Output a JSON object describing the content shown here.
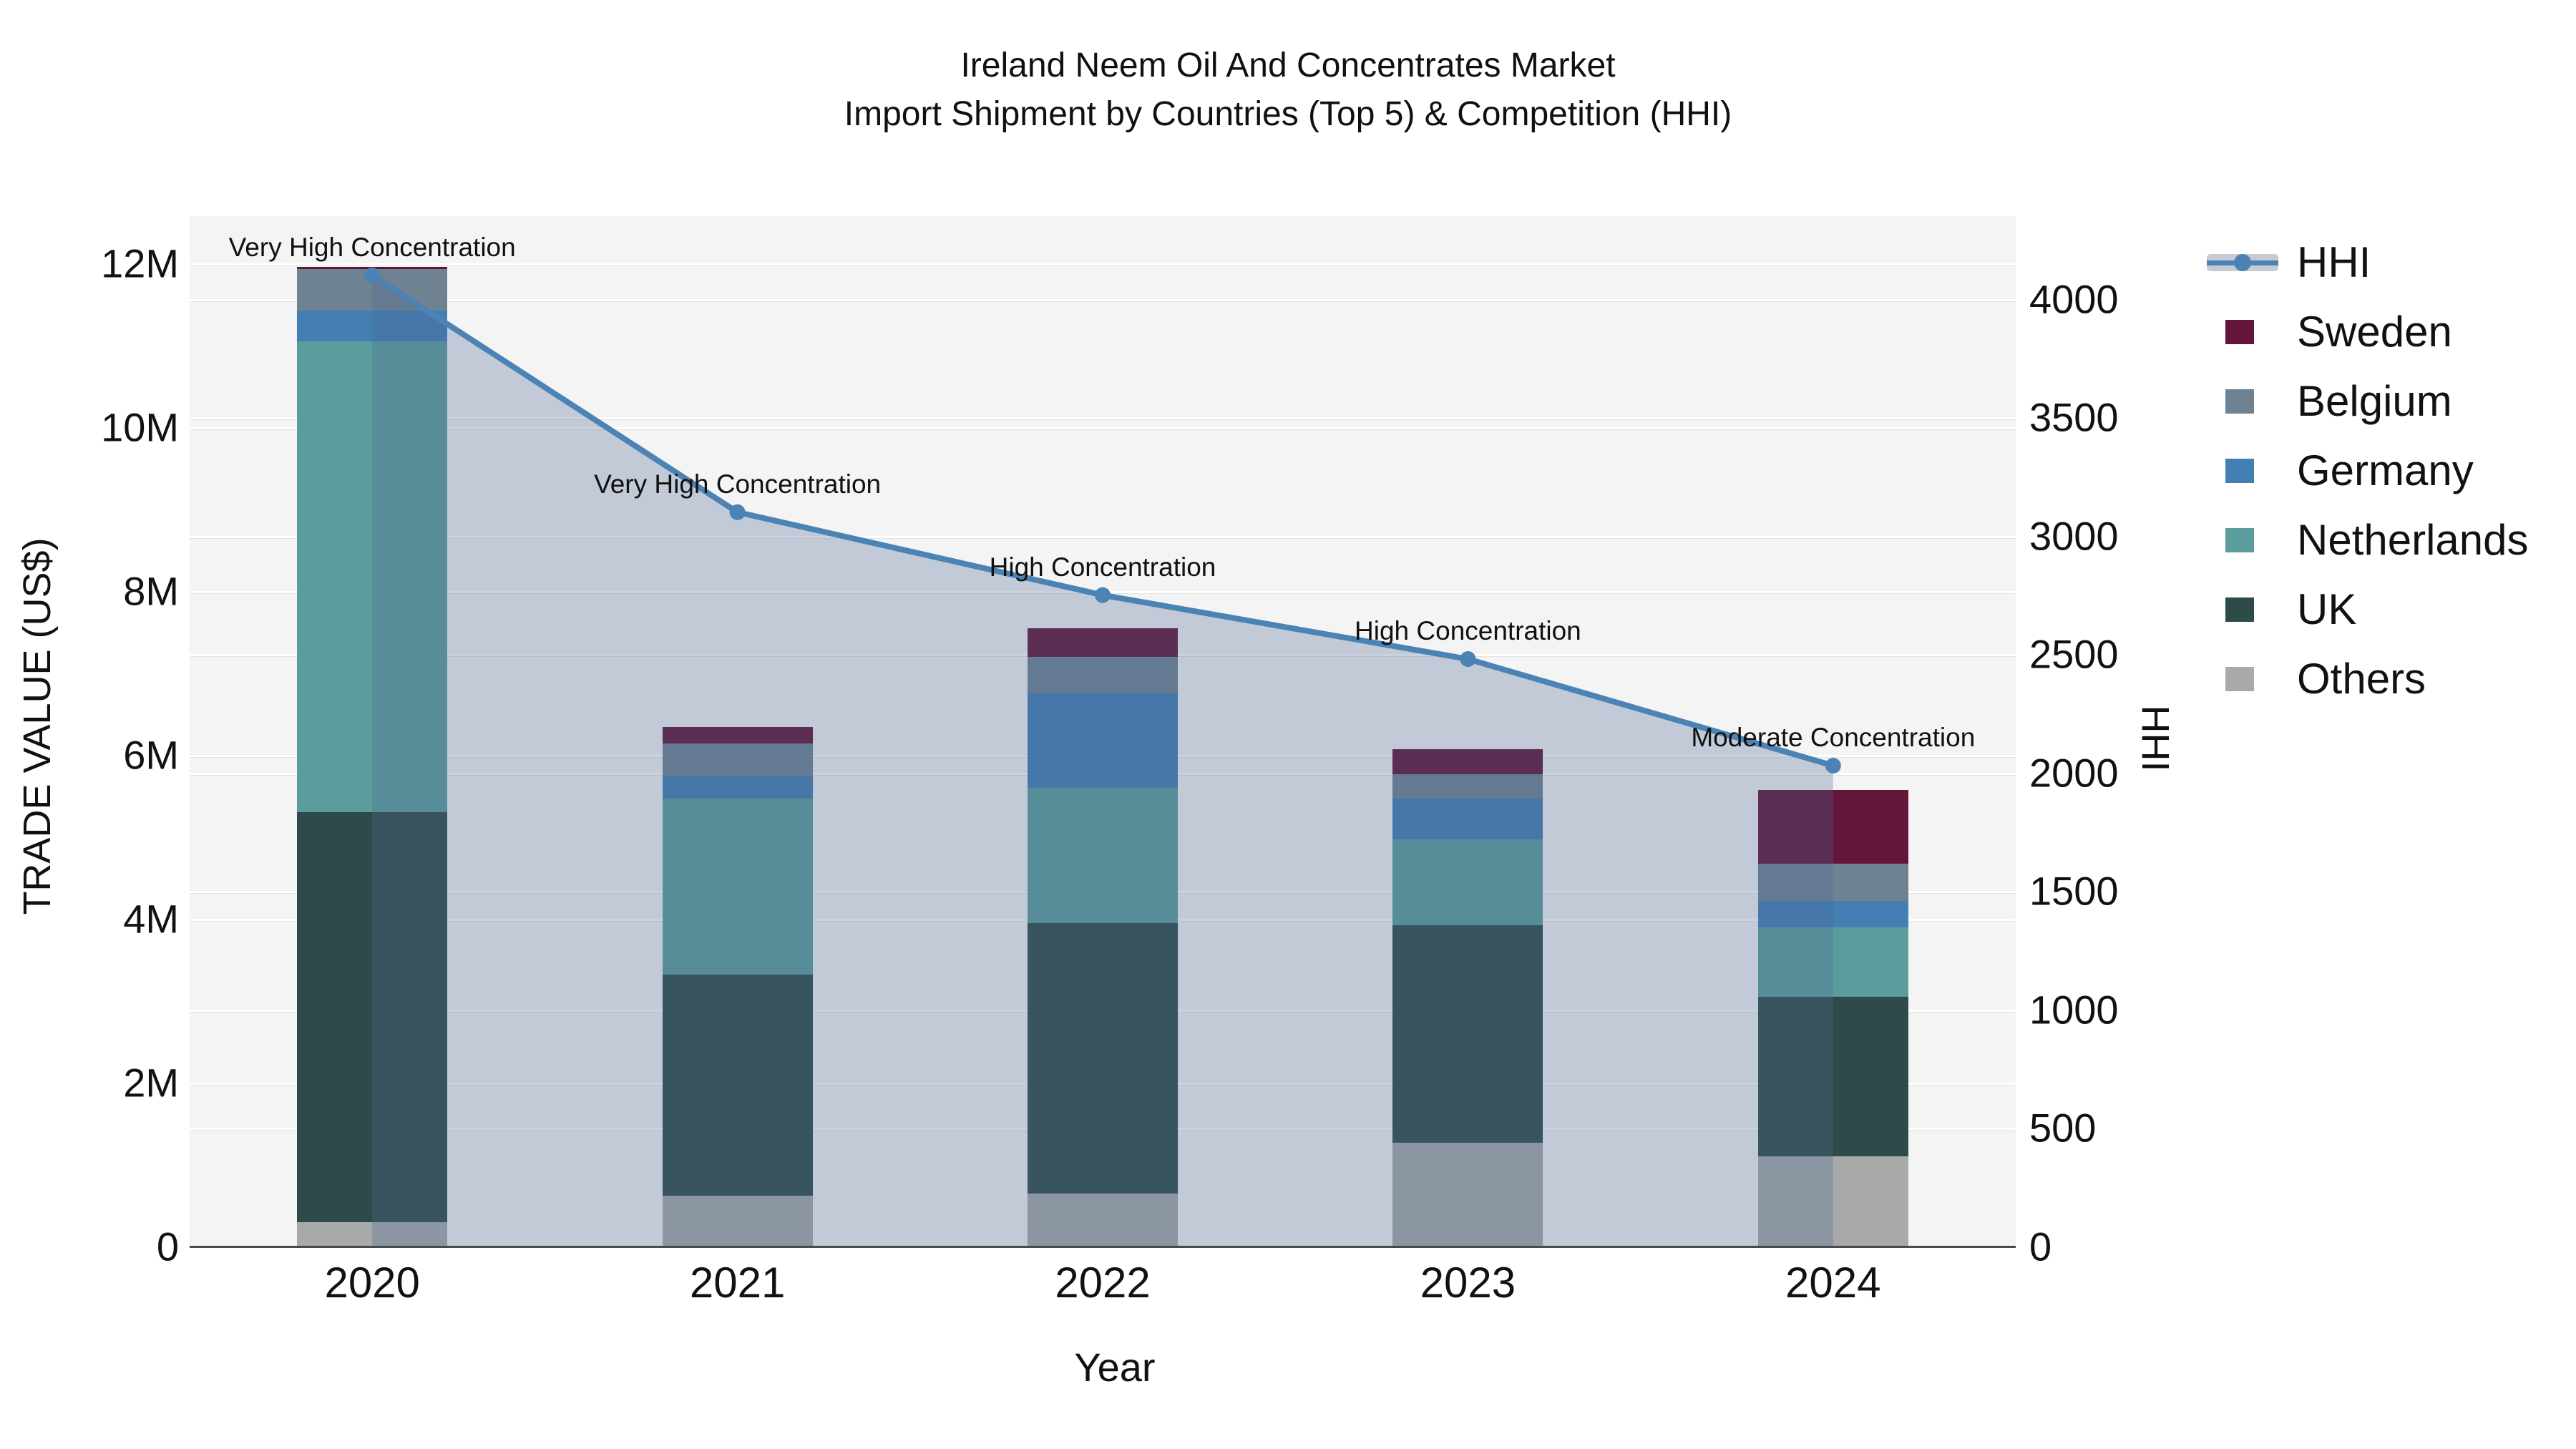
{
  "title": {
    "line1": "Ireland Neem Oil And Concentrates Market",
    "line2": "Import Shipment by Countries (Top 5) & Competition (HHI)"
  },
  "chart_data": {
    "type": "bar+line",
    "categories": [
      "2020",
      "2021",
      "2022",
      "2023",
      "2024"
    ],
    "xlabel": "Year",
    "y_left": {
      "label": "TRADE VALUE (US$)",
      "tick_labels": [
        "0",
        "2M",
        "4M",
        "6M",
        "8M",
        "10M",
        "12M"
      ],
      "tick_values_m": [
        0,
        2,
        4,
        6,
        8,
        10,
        12
      ],
      "axis_max_m": 12.58,
      "units": "US$ millions"
    },
    "y_right": {
      "label": "HHI",
      "tick_values": [
        0,
        500,
        1000,
        1500,
        2000,
        2500,
        3000,
        3500,
        4000
      ],
      "axis_max": 4350
    },
    "bar_series_bottom_to_top": [
      {
        "name": "Others",
        "color": "#a7aaa9",
        "values_m": [
          0.3,
          0.62,
          0.65,
          1.27,
          1.1
        ]
      },
      {
        "name": "UK",
        "color": "#2e4b49",
        "values_m": [
          5.0,
          2.7,
          3.3,
          2.65,
          1.95
        ]
      },
      {
        "name": "Netherlands",
        "color": "#5b9d9d",
        "values_m": [
          5.75,
          2.15,
          1.65,
          1.05,
          0.85
        ]
      },
      {
        "name": "Germany",
        "color": "#437fb3",
        "values_m": [
          0.38,
          0.27,
          1.15,
          0.5,
          0.32
        ]
      },
      {
        "name": "Belgium",
        "color": "#6f8292",
        "values_m": [
          0.5,
          0.4,
          0.45,
          0.3,
          0.45
        ]
      },
      {
        "name": "Sweden",
        "color": "#64153a",
        "values_m": [
          0.03,
          0.2,
          0.35,
          0.3,
          0.9
        ]
      }
    ],
    "hhi_line": {
      "name": "HHI",
      "color": "#4b83b4",
      "area_color": "rgba(77,107,146,0.30)",
      "values": [
        4100,
        3100,
        2750,
        2480,
        2030
      ]
    },
    "annotations": [
      "Very High Concentration",
      "Very High Concentration",
      "High Concentration",
      "High Concentration",
      "Moderate Concentration"
    ],
    "grid": true
  },
  "legend": {
    "items": [
      {
        "label": "HHI",
        "type": "line",
        "color": "#4b83b4"
      },
      {
        "label": "Sweden",
        "type": "swatch",
        "color": "#64153a"
      },
      {
        "label": "Belgium",
        "type": "swatch",
        "color": "#6f8292"
      },
      {
        "label": "Germany",
        "type": "swatch",
        "color": "#437fb3"
      },
      {
        "label": "Netherlands",
        "type": "swatch",
        "color": "#5b9d9d"
      },
      {
        "label": "UK",
        "type": "swatch",
        "color": "#2e4b49"
      },
      {
        "label": "Others",
        "type": "swatch",
        "color": "#a7aaa9"
      }
    ]
  }
}
